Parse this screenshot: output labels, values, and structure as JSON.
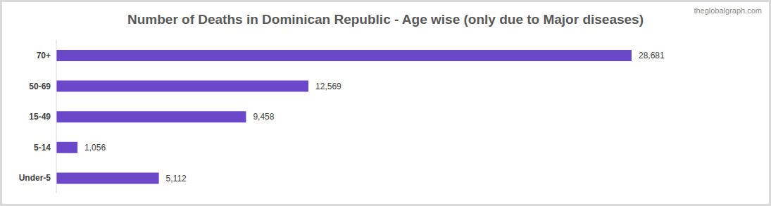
{
  "chart_data": {
    "type": "bar",
    "title": "Number of Deaths in Dominican Republic - Age wise (only due to Major diseases)",
    "watermark": "theglobalgraph.com",
    "categories": [
      "70+",
      "50-69",
      "15-49",
      "5-14",
      "Under-5"
    ],
    "values": [
      28681,
      12569,
      9458,
      1056,
      5112
    ],
    "value_labels": [
      "28,681",
      "12,569",
      "9,458",
      "1,056",
      "5,112"
    ],
    "color": "#6b47c9",
    "orientation": "horizontal",
    "xlim": [
      0,
      35000
    ],
    "data_labels": true,
    "tick_labels": "y",
    "grid": false
  }
}
